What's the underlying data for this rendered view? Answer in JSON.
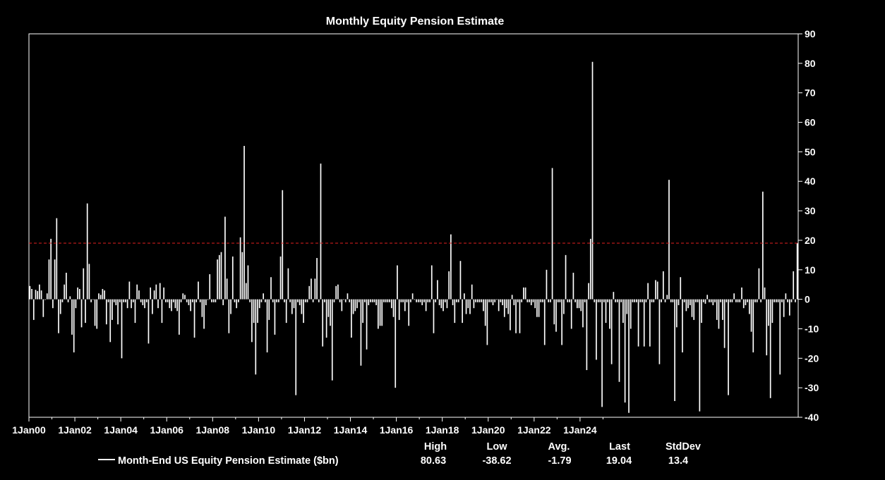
{
  "chart_data": {
    "type": "bar",
    "title": "Monthly Equity Pension Estimate",
    "xlabel": "",
    "ylabel": "",
    "ylim": [
      -40,
      90
    ],
    "y_ticks": [
      90,
      80,
      70,
      60,
      50,
      40,
      30,
      20,
      10,
      0,
      -10,
      -20,
      -30,
      -40
    ],
    "y_axis_side": "right",
    "x_tick_labels": [
      "1Jan00",
      "1Jan02",
      "1Jan04",
      "1Jan06",
      "1Jan08",
      "1Jan10",
      "1Jan12",
      "1Jan14",
      "1Jan16",
      "1Jan18",
      "1Jan20",
      "1Jan22",
      "1Jan24"
    ],
    "x_start": "Jan 2000",
    "x_end": "Dec 2025",
    "reference_line": {
      "value": 19.04,
      "color": "#e32020",
      "style": "dashed"
    },
    "grid": false,
    "legend_position": "bottom",
    "colors": {
      "background": "#000000",
      "bars": "#ffffff",
      "reference": "#e32020",
      "axes": "#ffffff"
    },
    "series": [
      {
        "name": "Month-End US Equity Pension Estimate ($bn)",
        "values": [
          4.5,
          3.5,
          -7,
          3.2,
          2.8,
          5,
          3,
          -6,
          0,
          2,
          13.5,
          20.5,
          -3,
          13.5,
          27.5,
          -11.5,
          -5,
          -1,
          5,
          9,
          -1,
          1,
          -12,
          -18,
          -3,
          4,
          3.5,
          -9.5,
          10.5,
          -8,
          32.5,
          12,
          -1,
          0,
          -9,
          -10,
          2,
          1.5,
          3.5,
          3,
          -8.5,
          -1,
          -14.5,
          -7,
          -1,
          -2,
          -8.5,
          -1,
          -20,
          -1,
          -1,
          -3,
          6,
          -3,
          -1,
          -8,
          5,
          3,
          -1,
          -2,
          -3,
          -1,
          -15,
          4,
          -5,
          3,
          5,
          -3,
          5.5,
          -8,
          4,
          -1,
          -1,
          -3,
          -4,
          -1,
          -3,
          -4,
          -12,
          -1,
          2,
          1.5,
          -1,
          -2,
          -4,
          -1,
          -13,
          -1,
          6,
          -1,
          -6,
          -10,
          -2,
          0,
          8.5,
          -1,
          -1,
          -1,
          13.5,
          15,
          16,
          -2,
          28,
          7,
          -11.5,
          -5,
          14.5,
          -1,
          -3,
          -1,
          21,
          16,
          52,
          5.5,
          11.5,
          -1,
          -14.5,
          -8,
          -25.5,
          -8,
          -3,
          -1,
          2,
          -1,
          -18,
          -7,
          7.5,
          -1,
          -12,
          -1,
          -1,
          14.5,
          37,
          -1,
          -8,
          10.5,
          -1,
          -5,
          -3,
          -32.5,
          -1,
          -2,
          -5,
          -8,
          -1,
          -1,
          4.5,
          7,
          -1,
          7,
          14,
          -1,
          46,
          -16,
          -1,
          -13,
          -6,
          -9,
          -27.5,
          -1,
          4.5,
          5,
          -1,
          -4,
          0,
          -1,
          2,
          -1,
          -13,
          -5,
          -4,
          -3,
          -1,
          -22.5,
          -8,
          -1,
          -17,
          -2,
          -1,
          -1,
          -1,
          -2,
          -10,
          -9,
          -9,
          -1,
          -1,
          -1,
          -1,
          -3,
          -6,
          -30,
          11.5,
          -7,
          -1,
          -1,
          -4,
          -1,
          -9,
          -1,
          2,
          0,
          -1,
          -1,
          -1,
          -2,
          -1,
          -4,
          -1,
          -1,
          11.5,
          -11.5,
          -1,
          6.5,
          -2,
          -3,
          -4,
          -1,
          -3,
          9.5,
          22,
          -2,
          -8,
          -1,
          -1,
          13,
          -8,
          2,
          -5,
          -3,
          -5,
          5,
          -3,
          -1,
          -1,
          -1,
          -1,
          -4,
          -9,
          -15.5,
          -1,
          -1,
          -2,
          -1,
          0,
          -4,
          -1,
          -2,
          -6,
          -3,
          -5,
          -10.5,
          1.5,
          -2,
          -11.5,
          -1,
          -11.5,
          -1,
          4,
          4,
          -1,
          -1,
          -2,
          -1,
          -3,
          -6,
          -6,
          -1,
          -1,
          -15.5,
          10,
          -1,
          -1,
          44.5,
          -8.5,
          -11,
          -1,
          -1,
          -15.5,
          -5,
          15,
          -1,
          -1,
          -10,
          9,
          -1,
          -3,
          -3,
          -4,
          -9.5,
          -1,
          -24,
          5.5,
          20.5,
          80.5,
          -1,
          -20.5,
          -1,
          -1,
          -36.5,
          -1,
          -8,
          -1,
          -10,
          -22,
          2.5,
          -1,
          -1,
          -28,
          -1,
          -8,
          -35,
          -5,
          -38.5,
          -10,
          -1,
          -1,
          -1,
          -16,
          -1,
          -1,
          -16,
          -1,
          5.5,
          -16,
          -1,
          -1,
          6.5,
          6,
          -22,
          -1,
          9.5,
          -1,
          1.5,
          40.5,
          -1,
          -1,
          -34.5,
          -9.5,
          -2,
          7.5,
          -18,
          -1,
          -4,
          -3,
          -2,
          -6,
          -7,
          -1,
          -1,
          -38,
          -8,
          -1,
          -1.5,
          1.5,
          -1,
          -1,
          -2,
          -1,
          -7,
          -10,
          -1,
          -7,
          -16.5,
          -1,
          -32.5,
          -1,
          -1,
          2,
          -1,
          -1,
          -1,
          4,
          -3,
          -2,
          -1,
          -5,
          -11,
          -18,
          -1,
          -1,
          10.5,
          -1,
          36.5,
          4,
          -19,
          -9,
          -33.5,
          -8,
          -1,
          -1,
          -1,
          -25.5,
          -1,
          -6,
          2,
          -1,
          -5.5,
          -1,
          9.5,
          -1,
          19
        ]
      }
    ],
    "stats": {
      "headers": [
        "High",
        "Low",
        "Avg.",
        "Last",
        "StdDev"
      ],
      "values": [
        "80.63",
        "-38.62",
        "-1.79",
        "19.04",
        "13.4"
      ]
    }
  }
}
